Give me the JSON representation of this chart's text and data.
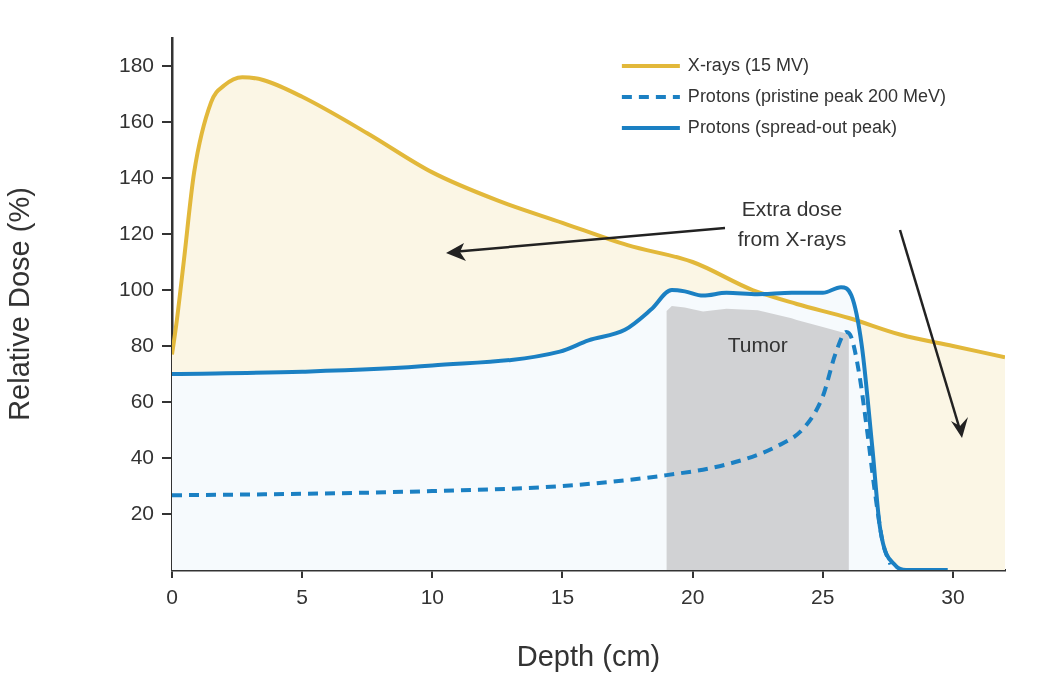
{
  "chart_data": {
    "type": "line",
    "xlabel": "Depth (cm)",
    "ylabel": "Relative Dose (%)",
    "xlim": [
      0,
      32
    ],
    "xticks": [
      0,
      5,
      10,
      15,
      20,
      25,
      30
    ],
    "ylim": [
      0,
      190
    ],
    "yticks": [
      20,
      40,
      60,
      80,
      100,
      120,
      140,
      160,
      180
    ],
    "grid": false,
    "legend": "top right",
    "series": [
      {
        "name": "X-rays (15 MV)",
        "type": "area",
        "color": "#e2b83a",
        "line_style": "solid",
        "x": [
          0,
          0.17,
          0.45,
          0.85,
          1.5,
          2.0,
          2.7,
          3.5,
          5.0,
          7.5,
          10,
          12.5,
          15,
          17.5,
          20,
          22.3,
          24,
          26,
          28,
          30,
          32
        ],
        "values": [
          77,
          88,
          110,
          142,
          167,
          173,
          176,
          175,
          169,
          156,
          142,
          132,
          124,
          116,
          110,
          100,
          95,
          90,
          84,
          80,
          76
        ]
      },
      {
        "name": "Protons (pristine peak 200 MeV)",
        "type": "line",
        "color": "#1b80c3",
        "line_style": "dashed",
        "x": [
          0,
          5,
          10,
          15,
          18.7,
          21.3,
          23.2,
          24.3,
          25.0,
          25.5,
          25.9,
          26.1,
          26.4,
          26.7,
          27.0,
          27.3,
          27.6
        ],
        "values": [
          26.7,
          27.2,
          28.2,
          30,
          33.5,
          37.7,
          44,
          51,
          62,
          77.6,
          85,
          83,
          70,
          50,
          28,
          10,
          2
        ]
      },
      {
        "name": "Protons (spread-out peak)",
        "type": "area",
        "color": "#1b80c3",
        "line_style": "solid",
        "x": [
          0,
          5,
          10,
          14.9,
          16,
          17.4,
          18.4,
          19.2,
          19.7,
          20.4,
          21.3,
          22.5,
          23.8,
          25.0,
          25.7,
          26.1,
          26.5,
          26.9,
          27.2,
          27.8,
          28.2,
          29.8
        ],
        "values": [
          70,
          70.8,
          73,
          78,
          82,
          85.8,
          93,
          100,
          99.5,
          98,
          99,
          98.5,
          99,
          99,
          101,
          98,
          80,
          44,
          15,
          1.5,
          0,
          0
        ]
      }
    ],
    "bands": [
      {
        "axis": "x",
        "from": 19,
        "to": 26,
        "label": "Tumor",
        "color": "#d1d2d4"
      }
    ],
    "annotations": [
      "Extra dose from X-rays"
    ]
  }
}
